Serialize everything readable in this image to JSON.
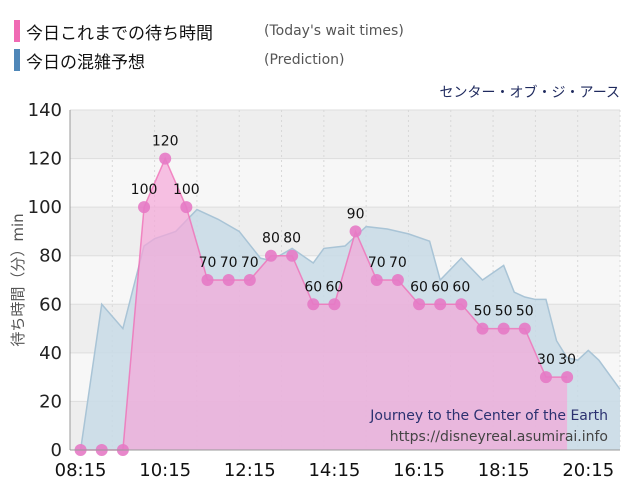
{
  "legend": {
    "today": {
      "label": "今日これまでの待ち時間",
      "note": "(Today's wait times)"
    },
    "prediction": {
      "label": "今日の混雑予想",
      "note": "(Prediction)"
    }
  },
  "attraction_name": "センター・オブ・ジ・アース",
  "watermark": {
    "title": "Journey to the Center of the Earth",
    "url": "https://disneyreal.asumirai.info"
  },
  "colors": {
    "today_line": "#f06ab4",
    "today_marker": "#e67ac5",
    "today_fill": "#f5a7d8",
    "prediction_swatch": "#4f87b8",
    "prediction_fill": "#c8dbe6",
    "prediction_line": "#a9c4d6",
    "attraction_text": "#1f2a5e"
  },
  "chart_data": {
    "type": "area",
    "xlabel": "",
    "ylabel": "待ち時間（分）min",
    "ylim": [
      0,
      140
    ],
    "xlim": [
      "08:00",
      "21:00"
    ],
    "yticks": [
      0,
      20,
      40,
      60,
      80,
      100,
      120,
      140
    ],
    "xticks": [
      "08:15",
      "10:15",
      "12:15",
      "14:15",
      "16:15",
      "18:15",
      "20:15"
    ],
    "grid": true,
    "series": [
      {
        "name": "今日の混雑予想",
        "x": [
          "08:15",
          "08:45",
          "09:15",
          "09:45",
          "10:00",
          "10:30",
          "11:00",
          "11:30",
          "12:00",
          "12:30",
          "12:45",
          "13:15",
          "13:45",
          "14:00",
          "14:30",
          "15:00",
          "15:30",
          "16:00",
          "16:30",
          "16:45",
          "17:15",
          "17:45",
          "18:15",
          "18:30",
          "18:45",
          "19:00",
          "19:15",
          "19:30",
          "19:45",
          "20:00",
          "20:15",
          "20:30",
          "21:00"
        ],
        "values": [
          0,
          60,
          50,
          84,
          87,
          90,
          99,
          95,
          90,
          79,
          78,
          83,
          77,
          83,
          84,
          92,
          91,
          89,
          86,
          70,
          79,
          70,
          76,
          65,
          63,
          62,
          62,
          45,
          38,
          37,
          41,
          37,
          25
        ]
      },
      {
        "name": "今日これまでの待ち時間",
        "x": [
          "08:15",
          "08:45",
          "09:15",
          "09:45",
          "10:15",
          "10:45",
          "11:15",
          "11:45",
          "12:15",
          "12:45",
          "13:15",
          "13:45",
          "14:15",
          "14:45",
          "15:15",
          "15:45",
          "16:15",
          "16:45",
          "17:15",
          "17:45",
          "18:15",
          "18:45",
          "19:15",
          "19:45"
        ],
        "values": [
          0,
          0,
          0,
          100,
          120,
          100,
          70,
          70,
          70,
          80,
          80,
          60,
          60,
          90,
          70,
          70,
          60,
          60,
          60,
          50,
          50,
          50,
          30,
          30
        ],
        "labels": [
          "",
          "",
          "",
          "100",
          "120",
          "100",
          "70",
          "70",
          "70",
          "80",
          "80",
          "60",
          "60",
          "90",
          "70",
          "70",
          "60",
          "60",
          "60",
          "50",
          "50",
          "50",
          "30",
          "30"
        ]
      }
    ]
  }
}
